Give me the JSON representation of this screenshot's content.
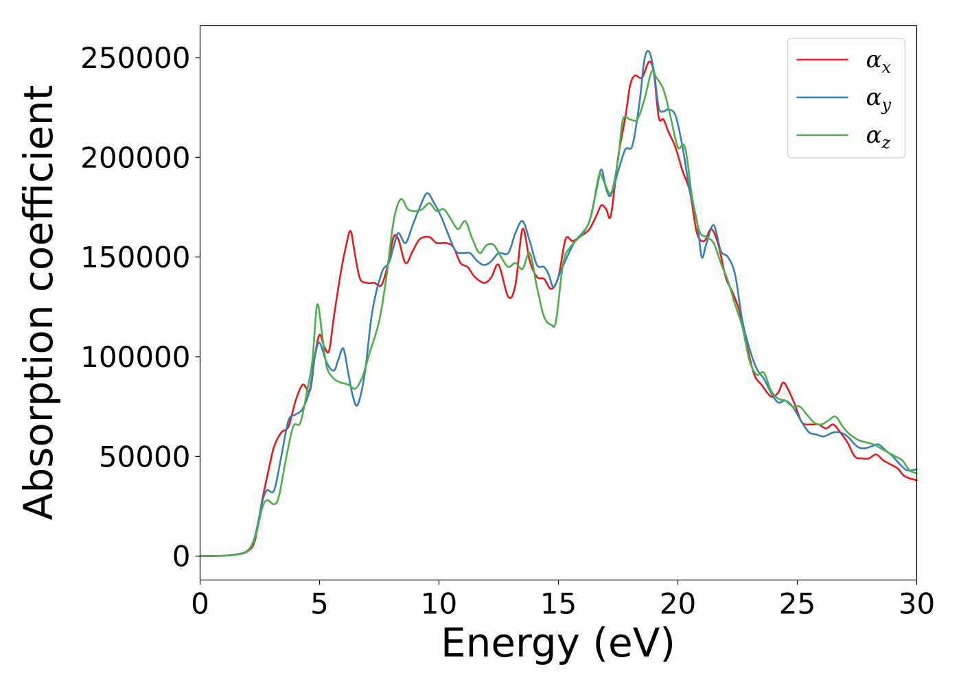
{
  "chart_data": {
    "type": "line",
    "xlabel": "Energy (eV)",
    "ylabel": "Absorption coefficient",
    "xlim": [
      0,
      30
    ],
    "ylim": [
      -12000,
      266000
    ],
    "x_ticks": [
      "0",
      "5",
      "10",
      "15",
      "20",
      "25",
      "30"
    ],
    "y_ticks": [
      "0",
      "50000",
      "100000",
      "150000",
      "200000",
      "250000"
    ],
    "grid": false,
    "legend_position": "top-right",
    "series": [
      {
        "name": "α",
        "subscript": "x",
        "color": "#e41a1c",
        "points": [
          [
            0,
            0
          ],
          [
            1,
            200
          ],
          [
            1.5,
            800
          ],
          [
            2,
            2500
          ],
          [
            2.3,
            8000
          ],
          [
            2.6,
            28000
          ],
          [
            2.9,
            45000
          ],
          [
            3.1,
            55000
          ],
          [
            3.4,
            62000
          ],
          [
            3.7,
            65000
          ],
          [
            4.0,
            78000
          ],
          [
            4.3,
            86000
          ],
          [
            4.6,
            83000
          ],
          [
            4.8,
            100000
          ],
          [
            5.0,
            111000
          ],
          [
            5.2,
            105000
          ],
          [
            5.4,
            103000
          ],
          [
            5.6,
            120000
          ],
          [
            5.9,
            143000
          ],
          [
            6.1,
            155000
          ],
          [
            6.3,
            163000
          ],
          [
            6.5,
            150000
          ],
          [
            6.7,
            139000
          ],
          [
            7.0,
            137000
          ],
          [
            7.3,
            137000
          ],
          [
            7.6,
            136000
          ],
          [
            7.9,
            148000
          ],
          [
            8.1,
            160000
          ],
          [
            8.3,
            159000
          ],
          [
            8.6,
            147000
          ],
          [
            8.9,
            153000
          ],
          [
            9.2,
            159000
          ],
          [
            9.6,
            160000
          ],
          [
            9.9,
            157000
          ],
          [
            10.3,
            157000
          ],
          [
            10.6,
            155000
          ],
          [
            10.9,
            147000
          ],
          [
            11.2,
            145000
          ],
          [
            11.5,
            140000
          ],
          [
            11.9,
            137000
          ],
          [
            12.2,
            140000
          ],
          [
            12.5,
            146000
          ],
          [
            12.9,
            130000
          ],
          [
            13.2,
            136000
          ],
          [
            13.5,
            164000
          ],
          [
            13.8,
            148000
          ],
          [
            14.1,
            140000
          ],
          [
            14.4,
            139000
          ],
          [
            14.7,
            134000
          ],
          [
            15.0,
            140000
          ],
          [
            15.3,
            159000
          ],
          [
            15.6,
            158000
          ],
          [
            16.0,
            161000
          ],
          [
            16.3,
            164000
          ],
          [
            16.6,
            171000
          ],
          [
            16.8,
            176000
          ],
          [
            17.0,
            174000
          ],
          [
            17.2,
            171000
          ],
          [
            17.5,
            200000
          ],
          [
            17.8,
            220000
          ],
          [
            18.0,
            236000
          ],
          [
            18.2,
            241000
          ],
          [
            18.5,
            240000
          ],
          [
            18.8,
            248000
          ],
          [
            19.0,
            242000
          ],
          [
            19.2,
            220000
          ],
          [
            19.4,
            219000
          ],
          [
            19.6,
            213000
          ],
          [
            19.9,
            205000
          ],
          [
            20.2,
            193000
          ],
          [
            20.5,
            183000
          ],
          [
            20.8,
            162000
          ],
          [
            21.1,
            158000
          ],
          [
            21.4,
            164000
          ],
          [
            21.7,
            156000
          ],
          [
            22.0,
            140000
          ],
          [
            22.3,
            132000
          ],
          [
            22.6,
            122000
          ],
          [
            22.9,
            105000
          ],
          [
            23.2,
            91000
          ],
          [
            23.5,
            86000
          ],
          [
            23.9,
            80000
          ],
          [
            24.2,
            82000
          ],
          [
            24.4,
            87000
          ],
          [
            24.6,
            84000
          ],
          [
            24.9,
            76000
          ],
          [
            25.2,
            67000
          ],
          [
            25.6,
            66000
          ],
          [
            25.9,
            66000
          ],
          [
            26.2,
            64000
          ],
          [
            26.5,
            66000
          ],
          [
            26.8,
            62000
          ],
          [
            27.1,
            57000
          ],
          [
            27.4,
            50000
          ],
          [
            27.7,
            49000
          ],
          [
            28.0,
            49000
          ],
          [
            28.3,
            51000
          ],
          [
            28.6,
            48000
          ],
          [
            28.9,
            46000
          ],
          [
            29.2,
            44000
          ],
          [
            29.5,
            40000
          ],
          [
            30,
            38000
          ]
        ]
      },
      {
        "name": "α",
        "subscript": "y",
        "color": "#377eb8",
        "points": [
          [
            0,
            0
          ],
          [
            1,
            200
          ],
          [
            1.5,
            800
          ],
          [
            2,
            2800
          ],
          [
            2.3,
            10000
          ],
          [
            2.6,
            27000
          ],
          [
            2.8,
            33000
          ],
          [
            3.1,
            33000
          ],
          [
            3.4,
            50000
          ],
          [
            3.7,
            68000
          ],
          [
            4.0,
            71000
          ],
          [
            4.3,
            74000
          ],
          [
            4.6,
            84000
          ],
          [
            4.8,
            100000
          ],
          [
            5.0,
            107000
          ],
          [
            5.3,
            97000
          ],
          [
            5.6,
            93000
          ],
          [
            5.8,
            99000
          ],
          [
            6.0,
            104000
          ],
          [
            6.2,
            92000
          ],
          [
            6.4,
            80000
          ],
          [
            6.6,
            76000
          ],
          [
            6.9,
            92000
          ],
          [
            7.2,
            122000
          ],
          [
            7.6,
            142000
          ],
          [
            7.9,
            147000
          ],
          [
            8.1,
            155000
          ],
          [
            8.3,
            162000
          ],
          [
            8.6,
            157000
          ],
          [
            8.9,
            166000
          ],
          [
            9.2,
            175000
          ],
          [
            9.5,
            182000
          ],
          [
            9.8,
            177000
          ],
          [
            10.1,
            170000
          ],
          [
            10.4,
            161000
          ],
          [
            10.7,
            153000
          ],
          [
            11.0,
            152000
          ],
          [
            11.3,
            152000
          ],
          [
            11.6,
            148000
          ],
          [
            11.9,
            146000
          ],
          [
            12.2,
            148000
          ],
          [
            12.5,
            152000
          ],
          [
            12.9,
            152000
          ],
          [
            13.2,
            162000
          ],
          [
            13.5,
            168000
          ],
          [
            13.8,
            158000
          ],
          [
            14.1,
            146000
          ],
          [
            14.4,
            145000
          ],
          [
            14.6,
            141000
          ],
          [
            14.8,
            135000
          ],
          [
            15.1,
            143000
          ],
          [
            15.4,
            151000
          ],
          [
            15.7,
            158000
          ],
          [
            16.0,
            162000
          ],
          [
            16.3,
            168000
          ],
          [
            16.6,
            184000
          ],
          [
            16.8,
            194000
          ],
          [
            17.0,
            184000
          ],
          [
            17.2,
            181000
          ],
          [
            17.5,
            193000
          ],
          [
            17.8,
            204000
          ],
          [
            18.1,
            206000
          ],
          [
            18.4,
            228000
          ],
          [
            18.6,
            249000
          ],
          [
            18.8,
            253000
          ],
          [
            19.0,
            243000
          ],
          [
            19.2,
            225000
          ],
          [
            19.4,
            223000
          ],
          [
            19.6,
            224000
          ],
          [
            19.9,
            221000
          ],
          [
            20.2,
            205000
          ],
          [
            20.5,
            183000
          ],
          [
            20.8,
            168000
          ],
          [
            21.0,
            150000
          ],
          [
            21.2,
            157000
          ],
          [
            21.5,
            166000
          ],
          [
            21.8,
            153000
          ],
          [
            22.1,
            150000
          ],
          [
            22.4,
            141000
          ],
          [
            22.7,
            118000
          ],
          [
            23.0,
            104000
          ],
          [
            23.3,
            94000
          ],
          [
            23.6,
            89000
          ],
          [
            23.9,
            82000
          ],
          [
            24.2,
            77000
          ],
          [
            24.5,
            78000
          ],
          [
            24.8,
            75000
          ],
          [
            25.2,
            67000
          ],
          [
            25.5,
            62000
          ],
          [
            25.8,
            61000
          ],
          [
            26.1,
            60000
          ],
          [
            26.5,
            62000
          ],
          [
            26.8,
            62000
          ],
          [
            27.1,
            60000
          ],
          [
            27.5,
            55000
          ],
          [
            27.8,
            54000
          ],
          [
            28.1,
            55000
          ],
          [
            28.4,
            56000
          ],
          [
            28.7,
            53000
          ],
          [
            29.0,
            50000
          ],
          [
            29.3,
            46000
          ],
          [
            29.6,
            43000
          ],
          [
            30,
            43500
          ]
        ]
      },
      {
        "name": "α",
        "subscript": "z",
        "color": "#4daf4a",
        "points": [
          [
            0,
            0
          ],
          [
            1,
            200
          ],
          [
            1.5,
            700
          ],
          [
            2,
            2500
          ],
          [
            2.3,
            9000
          ],
          [
            2.6,
            24000
          ],
          [
            2.8,
            28000
          ],
          [
            3.1,
            26000
          ],
          [
            3.3,
            30000
          ],
          [
            3.6,
            49000
          ],
          [
            3.9,
            65000
          ],
          [
            4.2,
            67000
          ],
          [
            4.5,
            84000
          ],
          [
            4.7,
            98000
          ],
          [
            4.9,
            126000
          ],
          [
            5.1,
            112000
          ],
          [
            5.3,
            95000
          ],
          [
            5.6,
            89000
          ],
          [
            5.9,
            87000
          ],
          [
            6.2,
            86000
          ],
          [
            6.5,
            84000
          ],
          [
            6.8,
            90000
          ],
          [
            7.1,
            102000
          ],
          [
            7.5,
            118000
          ],
          [
            7.8,
            140000
          ],
          [
            8.1,
            168000
          ],
          [
            8.4,
            179000
          ],
          [
            8.7,
            174000
          ],
          [
            9.0,
            173000
          ],
          [
            9.3,
            174000
          ],
          [
            9.6,
            177000
          ],
          [
            9.9,
            173000
          ],
          [
            10.2,
            174000
          ],
          [
            10.5,
            169000
          ],
          [
            10.8,
            164000
          ],
          [
            11.1,
            168000
          ],
          [
            11.4,
            159000
          ],
          [
            11.7,
            152000
          ],
          [
            12.0,
            156000
          ],
          [
            12.3,
            156000
          ],
          [
            12.6,
            150000
          ],
          [
            12.9,
            145000
          ],
          [
            13.2,
            147000
          ],
          [
            13.5,
            144000
          ],
          [
            13.8,
            152000
          ],
          [
            14.1,
            135000
          ],
          [
            14.4,
            120000
          ],
          [
            14.7,
            116000
          ],
          [
            14.9,
            118000
          ],
          [
            15.2,
            147000
          ],
          [
            15.5,
            155000
          ],
          [
            15.8,
            159000
          ],
          [
            16.1,
            163000
          ],
          [
            16.4,
            172000
          ],
          [
            16.7,
            191000
          ],
          [
            16.9,
            188000
          ],
          [
            17.2,
            182000
          ],
          [
            17.5,
            199000
          ],
          [
            17.7,
            219000
          ],
          [
            18.0,
            219000
          ],
          [
            18.3,
            219000
          ],
          [
            18.6,
            229000
          ],
          [
            18.9,
            243000
          ],
          [
            19.1,
            240000
          ],
          [
            19.4,
            234000
          ],
          [
            19.7,
            220000
          ],
          [
            20.0,
            205000
          ],
          [
            20.3,
            205000
          ],
          [
            20.6,
            180000
          ],
          [
            20.9,
            163000
          ],
          [
            21.2,
            160000
          ],
          [
            21.5,
            157000
          ],
          [
            21.8,
            147000
          ],
          [
            22.1,
            138000
          ],
          [
            22.4,
            126000
          ],
          [
            22.7,
            115000
          ],
          [
            23.0,
            98000
          ],
          [
            23.3,
            91000
          ],
          [
            23.6,
            92000
          ],
          [
            23.9,
            83000
          ],
          [
            24.2,
            79000
          ],
          [
            24.5,
            78000
          ],
          [
            24.8,
            75000
          ],
          [
            25.1,
            75000
          ],
          [
            25.4,
            71000
          ],
          [
            25.7,
            67000
          ],
          [
            26.0,
            66000
          ],
          [
            26.3,
            68000
          ],
          [
            26.6,
            70000
          ],
          [
            26.9,
            65000
          ],
          [
            27.2,
            61000
          ],
          [
            27.6,
            58000
          ],
          [
            27.9,
            57000
          ],
          [
            28.2,
            56000
          ],
          [
            28.5,
            54000
          ],
          [
            28.8,
            52000
          ],
          [
            29.1,
            50000
          ],
          [
            29.4,
            48000
          ],
          [
            29.7,
            43000
          ],
          [
            30,
            41500
          ]
        ]
      }
    ]
  }
}
